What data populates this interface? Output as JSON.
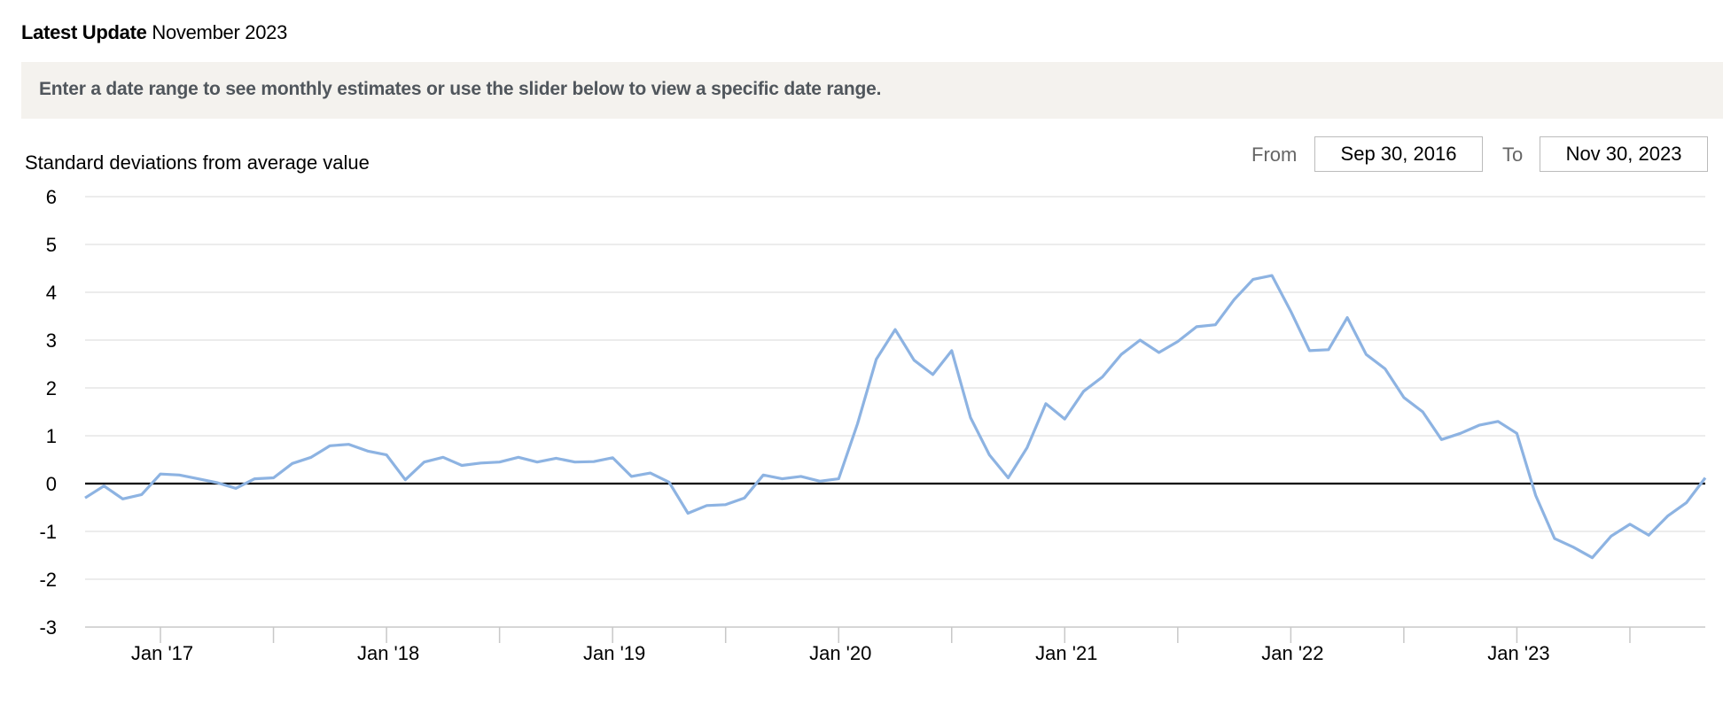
{
  "header": {
    "latest_label": "Latest Update",
    "latest_value": "November 2023",
    "banner_text": "Enter a date range to see monthly estimates or use the slider below to view a specific date range."
  },
  "range": {
    "from_label": "From",
    "from_value": "Sep 30, 2016",
    "to_label": "To",
    "to_value": "Nov 30, 2023"
  },
  "colors": {
    "series": "#8db3e2",
    "zero_line": "#000000",
    "grid": "#e6e6e6"
  },
  "chart_data": {
    "type": "line",
    "ylabel": "Standard deviations from average value",
    "xlabel": "",
    "ylim": [
      -3,
      6
    ],
    "yticks": [
      6,
      5,
      4,
      3,
      2,
      1,
      0,
      -1,
      -2,
      -3
    ],
    "x_tick_labels": [
      "Jan '17",
      "Jan '18",
      "Jan '19",
      "Jan '20",
      "Jan '21",
      "Jan '22",
      "Jan '23"
    ],
    "grid": true,
    "x_start": "2016-09",
    "x_end": "2023-11",
    "series": [
      {
        "values": [
          -0.3,
          -0.05,
          -0.32,
          -0.23,
          0.2,
          0.18,
          0.1,
          0.02,
          -0.1,
          0.1,
          0.12,
          0.42,
          0.55,
          0.79,
          0.82,
          0.68,
          0.6,
          0.08,
          0.45,
          0.55,
          0.38,
          0.43,
          0.45,
          0.55,
          0.45,
          0.53,
          0.45,
          0.46,
          0.54,
          0.15,
          0.22,
          0.03,
          -0.62,
          -0.46,
          -0.44,
          -0.3,
          0.18,
          0.1,
          0.15,
          0.05,
          0.1,
          1.25,
          2.6,
          3.22,
          2.58,
          2.28,
          2.78,
          1.38,
          0.6,
          0.12,
          0.75,
          1.67,
          1.35,
          1.93,
          2.23,
          2.7,
          3.0,
          2.74,
          2.97,
          3.28,
          3.32,
          3.85,
          4.27,
          4.35,
          3.6,
          2.78,
          2.8,
          3.47,
          2.7,
          2.4,
          1.8,
          1.5,
          0.92,
          1.05,
          1.22,
          1.3,
          1.05,
          -0.25,
          -1.15,
          -1.33,
          -1.55,
          -1.1,
          -0.85,
          -1.08,
          -0.68,
          -0.4,
          0.12
        ]
      }
    ]
  }
}
